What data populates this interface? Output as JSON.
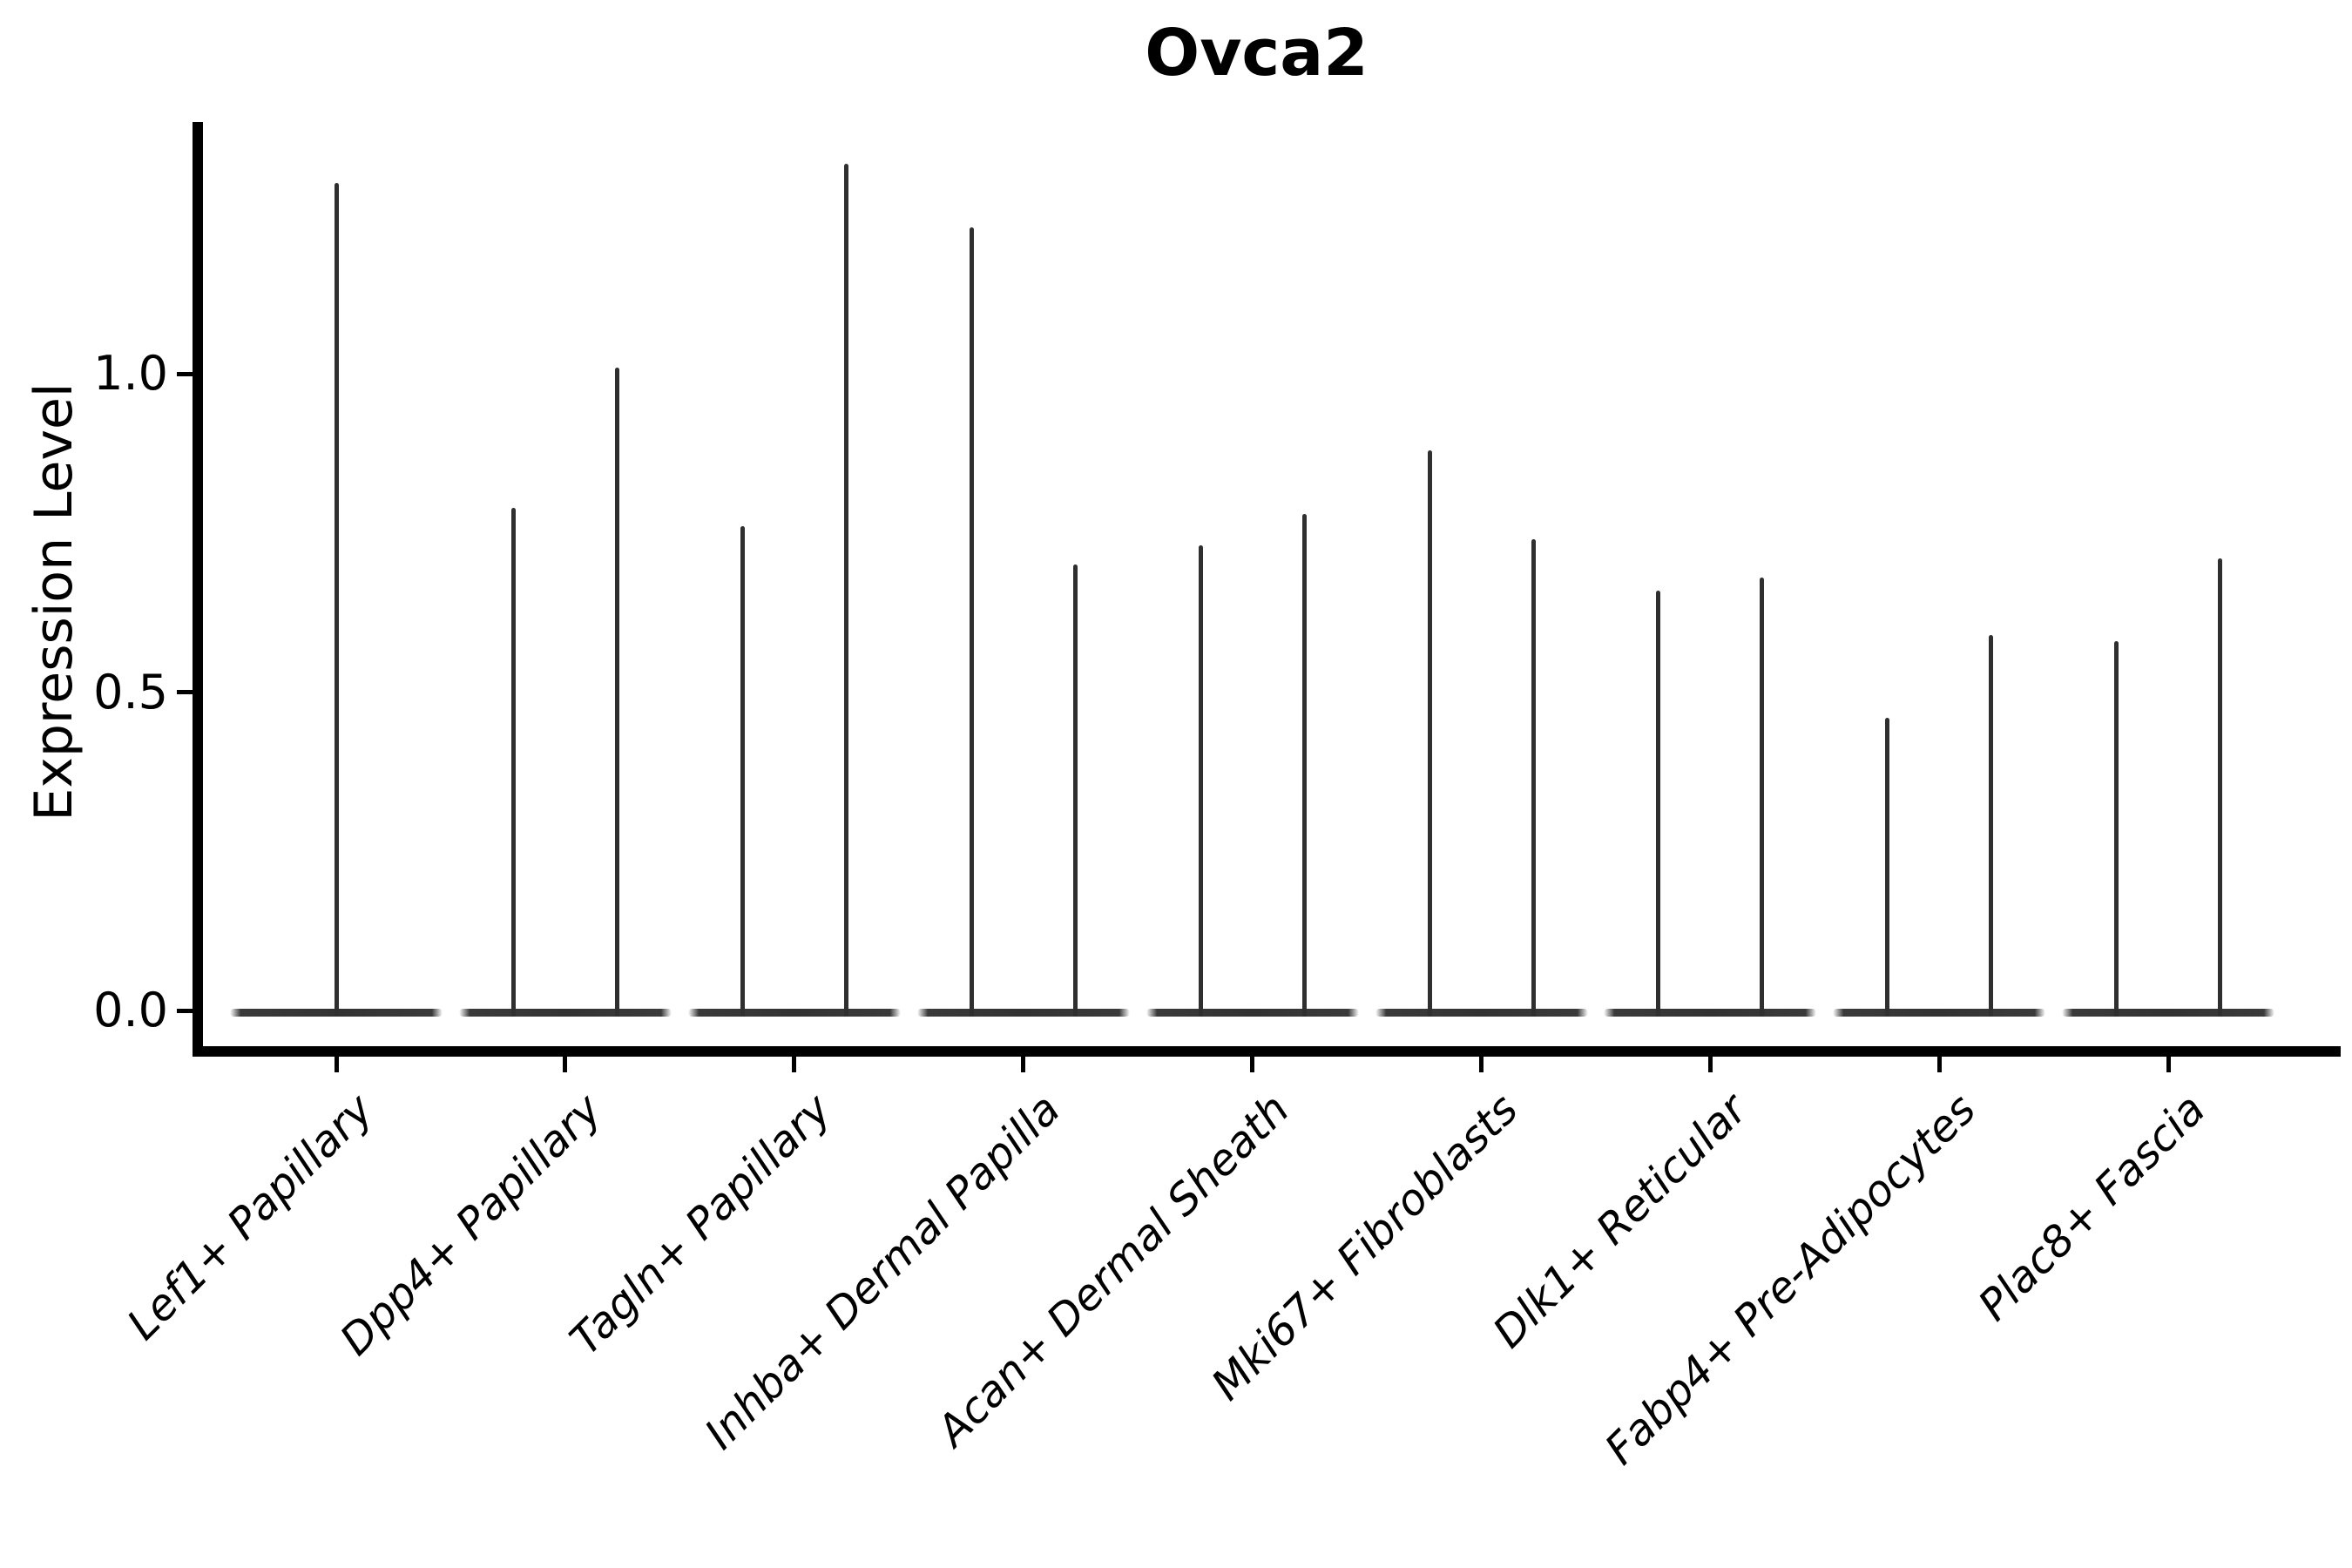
{
  "title": "Ovca2",
  "axes": {
    "ylabel": "Expression Level",
    "yticks": [
      {
        "label": "0.0",
        "value": 0.0
      },
      {
        "label": "0.5",
        "value": 0.5
      },
      {
        "label": "1.0",
        "value": 1.0
      }
    ]
  },
  "chart_data": {
    "type": "violin",
    "title": "Ovca2",
    "xlabel": "",
    "ylabel": "Expression Level",
    "ylim": [
      -0.06,
      1.4
    ],
    "yticks": [
      0.0,
      0.5,
      1.0
    ],
    "grid": false,
    "legend": null,
    "categories": [
      "Lef1+ Papillary",
      "Dpp4+ Papillary",
      "Tagln+ Papillary",
      "Inhba+ Dermal Papilla",
      "Acan+ Dermal Sheath",
      "Mki67+ Fibroblasts",
      "Dlk1+ Reticular",
      "Fabp4+ Pre-Adipocytes",
      "Plac8+ Fascia"
    ],
    "violins": [
      {
        "category": "Lef1+ Papillary",
        "bulk_at": 0.0,
        "tail_maxima": [
          1.3
        ]
      },
      {
        "category": "Dpp4+ Papillary",
        "bulk_at": 0.0,
        "tail_maxima": [
          0.79,
          1.01
        ]
      },
      {
        "category": "Tagln+ Papillary",
        "bulk_at": 0.0,
        "tail_maxima": [
          0.76,
          1.33
        ]
      },
      {
        "category": "Inhba+ Dermal Papilla",
        "bulk_at": 0.0,
        "tail_maxima": [
          1.23,
          0.7
        ]
      },
      {
        "category": "Acan+ Dermal Sheath",
        "bulk_at": 0.0,
        "tail_maxima": [
          0.73,
          0.78
        ]
      },
      {
        "category": "Mki67+ Fibroblasts",
        "bulk_at": 0.0,
        "tail_maxima": [
          0.88,
          0.74
        ]
      },
      {
        "category": "Dlk1+ Reticular",
        "bulk_at": 0.0,
        "tail_maxima": [
          0.66,
          0.68
        ]
      },
      {
        "category": "Fabp4+ Pre-Adipocytes",
        "bulk_at": 0.0,
        "tail_maxima": [
          0.46,
          0.59
        ]
      },
      {
        "category": "Plac8+ Fascia",
        "bulk_at": 0.0,
        "tail_maxima": [
          0.58,
          0.71
        ]
      }
    ]
  },
  "style": {
    "ink": "#000000",
    "violin_color": "#333333",
    "background": "#ffffff"
  }
}
